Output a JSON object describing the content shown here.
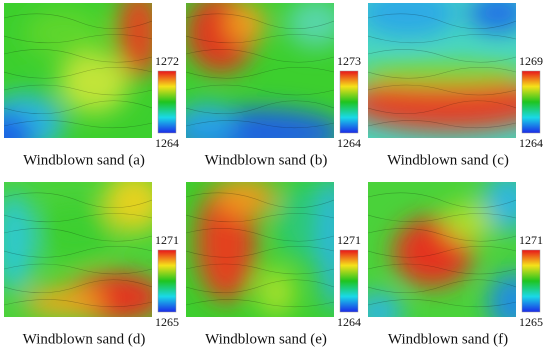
{
  "panels": [
    {
      "caption": "Windblown sand (a)",
      "max": 1272,
      "min": 1264
    },
    {
      "caption": "Windblown sand (b)",
      "max": 1273,
      "min": 1264
    },
    {
      "caption": "Windblown sand (c)",
      "max": 1269,
      "min": 1264
    },
    {
      "caption": "Windblown sand (d)",
      "max": 1271,
      "min": 1265
    },
    {
      "caption": "Windblown sand (e)",
      "max": 1271,
      "min": 1264
    },
    {
      "caption": "Windblown sand (f)",
      "max": 1271,
      "min": 1265
    }
  ]
}
